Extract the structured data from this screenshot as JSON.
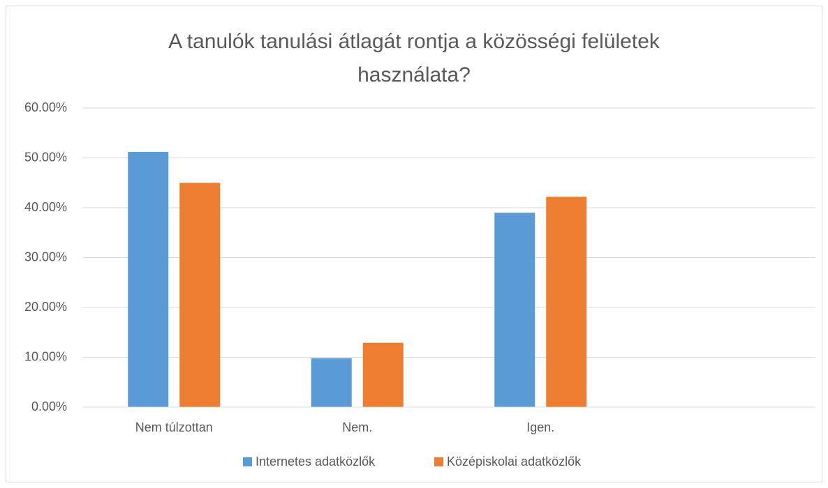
{
  "chart_data": {
    "type": "bar",
    "title": "A tanulók tanulási átlagát rontja a közösségi felületek használata?",
    "categories": [
      "Nem túlzottan",
      "Nem.",
      "Igen.",
      null
    ],
    "series": [
      {
        "name": "Internetes adatközlők",
        "color": "#5b9bd5",
        "values": [
          51.2,
          9.8,
          39.0,
          null
        ]
      },
      {
        "name": "Középiskolai adatközlők",
        "color": "#ed7d31",
        "values": [
          45.0,
          12.9,
          42.2,
          null
        ]
      }
    ],
    "ylim": [
      0,
      60
    ],
    "yticks": [
      {
        "value": 0,
        "label": "0.00%"
      },
      {
        "value": 10,
        "label": "10.00%"
      },
      {
        "value": 20,
        "label": "20.00%"
      },
      {
        "value": 30,
        "label": "30.00%"
      },
      {
        "value": 40,
        "label": "40.00%"
      },
      {
        "value": 50,
        "label": "50.00%"
      },
      {
        "value": 60,
        "label": "60.00%"
      }
    ],
    "grid": true,
    "legend": "bottom"
  }
}
